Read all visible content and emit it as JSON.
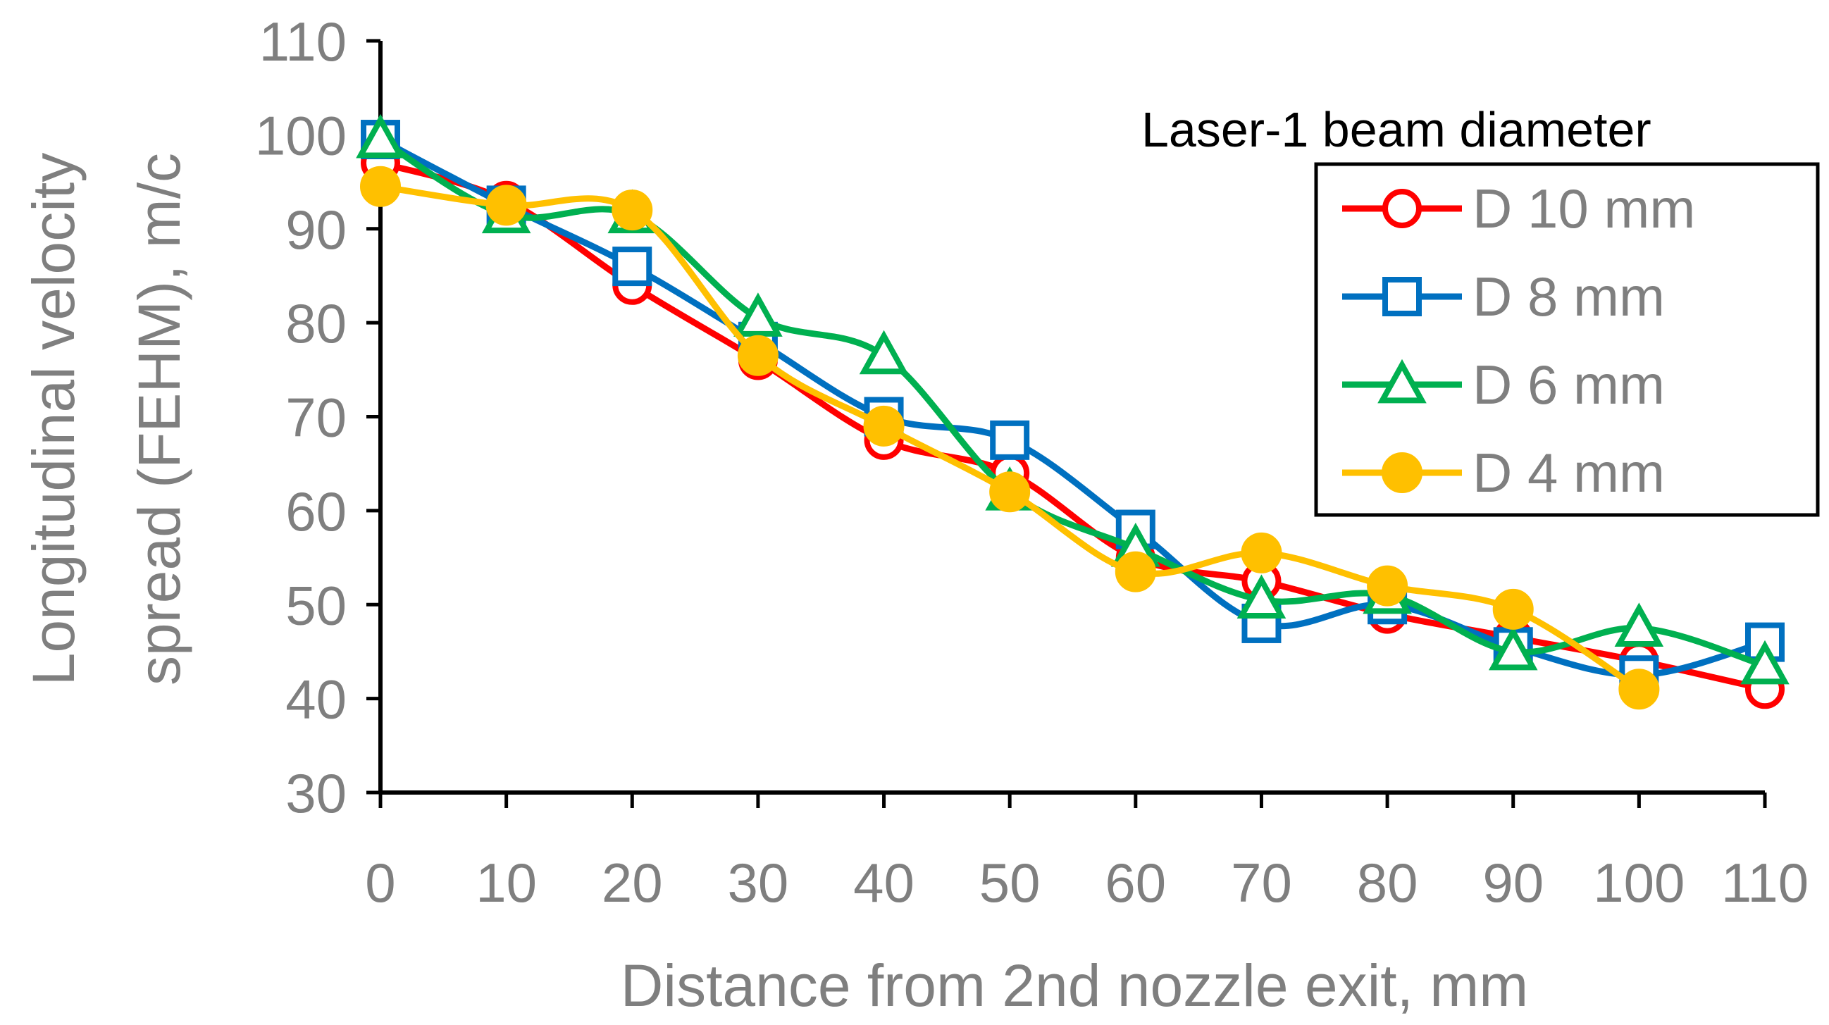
{
  "chart_data": {
    "type": "line",
    "title": "",
    "xlabel": "Distance from 2nd nozzle exit, mm",
    "ylabel_lines": [
      "Longitudinal velocity",
      "spread (FEHM), m/c"
    ],
    "xlim": [
      0,
      110
    ],
    "ylim": [
      30,
      110
    ],
    "x_ticks": [
      0,
      10,
      20,
      30,
      40,
      50,
      60,
      70,
      80,
      90,
      100,
      110
    ],
    "y_ticks": [
      30,
      40,
      50,
      60,
      70,
      80,
      90,
      100,
      110
    ],
    "grid": false,
    "x": [
      0,
      10,
      20,
      30,
      40,
      50,
      60,
      70,
      80,
      90,
      100,
      110
    ],
    "legend": {
      "title": "Laser-1 beam diameter",
      "placement": "top-right"
    },
    "series": [
      {
        "name": "D 10 mm",
        "color": "#ff0000",
        "marker": "circle-open",
        "values": [
          97,
          93,
          84,
          76,
          67.5,
          64,
          55,
          52.5,
          49,
          46.5,
          44,
          41
        ]
      },
      {
        "name": "D 8 mm",
        "color": "#0070c0",
        "marker": "square-open",
        "values": [
          99.5,
          92.5,
          86,
          78,
          70,
          67.5,
          58,
          48,
          50,
          45.5,
          42.5,
          46
        ]
      },
      {
        "name": "D 6 mm",
        "color": "#00b050",
        "marker": "triangle-open",
        "values": [
          99.5,
          91.5,
          91.5,
          80.5,
          76.5,
          62,
          56,
          50.5,
          51,
          45,
          47.5,
          43.5
        ]
      },
      {
        "name": "D 4 mm",
        "color": "#ffc000",
        "marker": "circle-filled",
        "values": [
          94.5,
          92.5,
          92,
          76.5,
          69,
          62,
          53.5,
          55.5,
          52,
          49.5,
          41,
          null
        ]
      }
    ]
  }
}
